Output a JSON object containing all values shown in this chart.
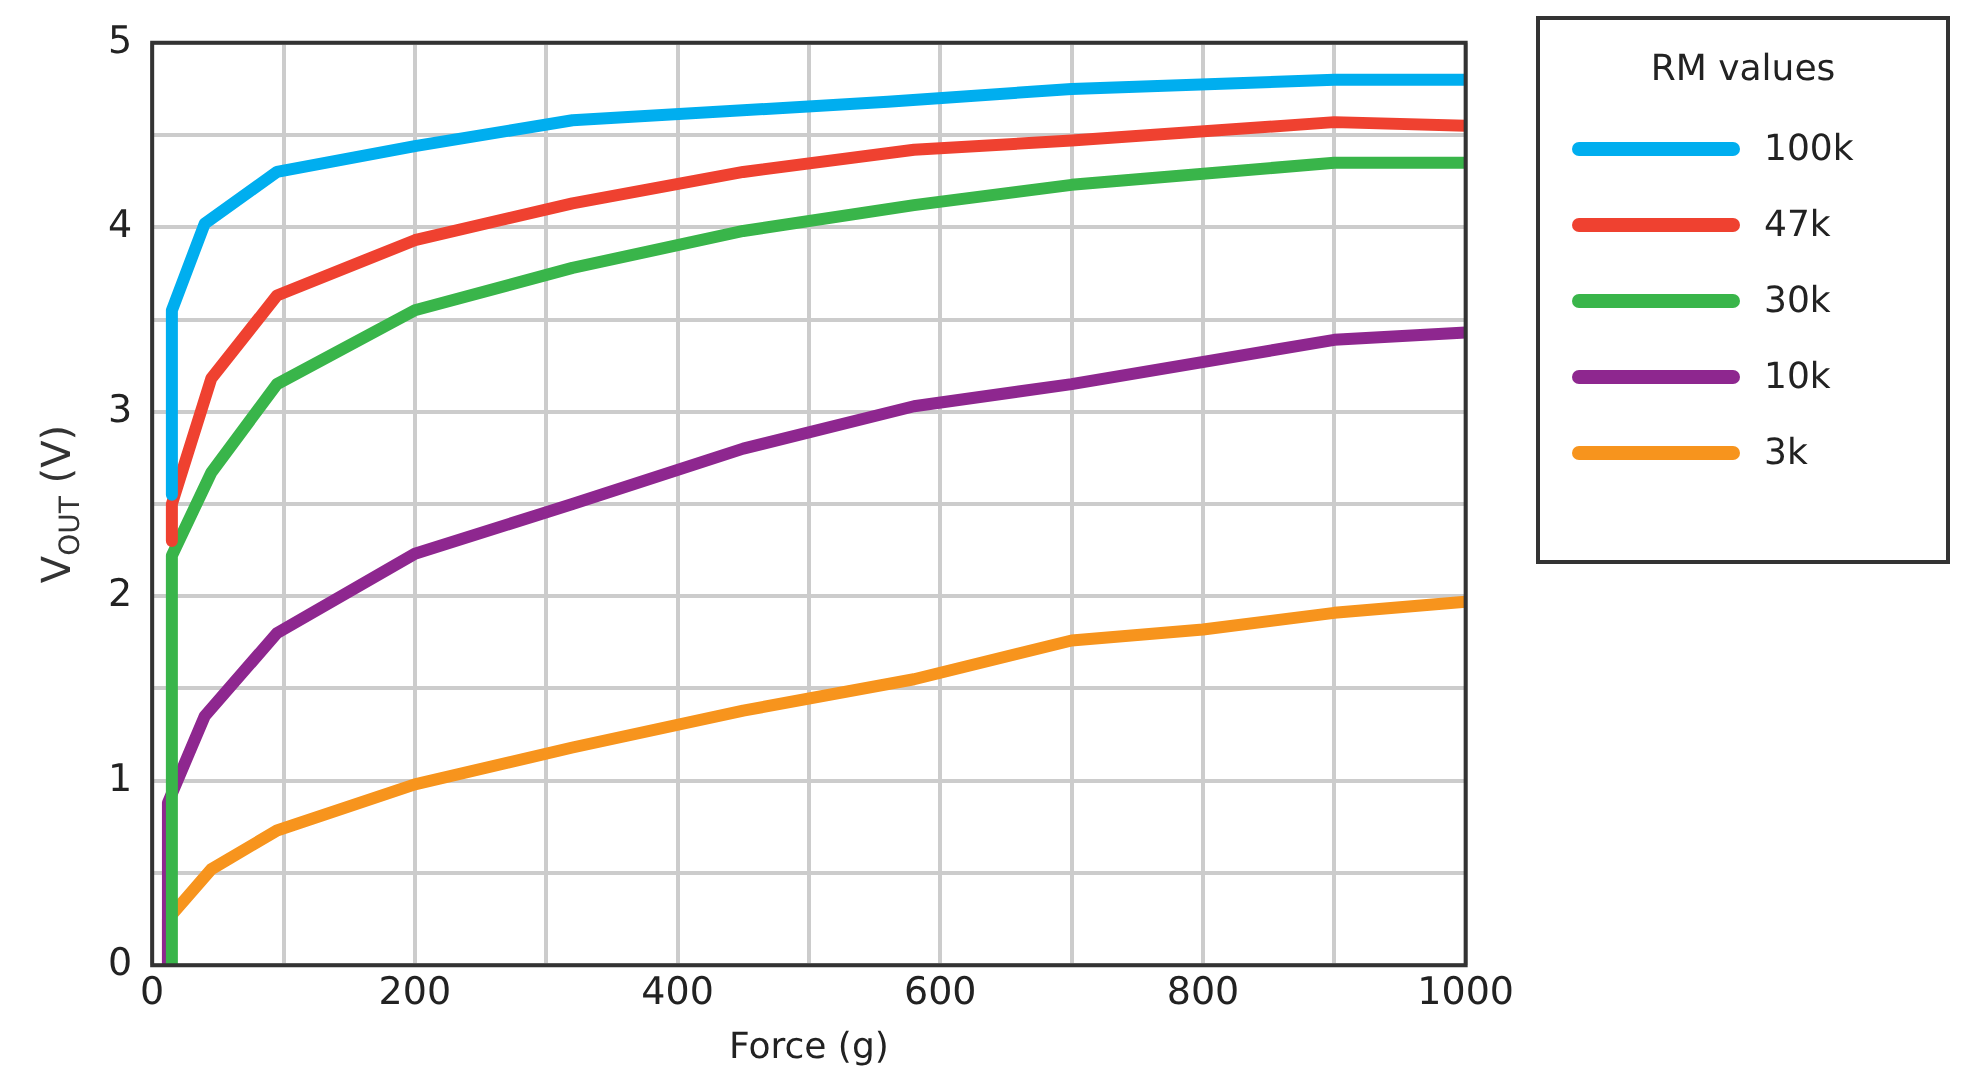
{
  "chart_data": {
    "type": "line",
    "xlabel": "Force (g)",
    "ylabel": "V$_{OUT}$ (V)",
    "legend_title": "RM values",
    "legend": "right",
    "grid": true,
    "marker": "none",
    "line_style": "solid",
    "xlim": [
      0,
      1000
    ],
    "ylim": [
      0,
      5
    ],
    "xticks": [
      0,
      {
        "value": 100,
        "label": null
      },
      200,
      {
        "value": 300,
        "label": null
      },
      400,
      {
        "value": 500,
        "label": null
      },
      600,
      {
        "value": 700,
        "label": null
      },
      800,
      {
        "value": 900,
        "label": null
      },
      1000
    ],
    "yticks": [
      0,
      {
        "value": 0.5,
        "label": null
      },
      1,
      {
        "value": 1.5,
        "label": null
      },
      2,
      {
        "value": 2.5,
        "label": null
      },
      3,
      {
        "value": 3.5,
        "label": null
      },
      4,
      {
        "value": 4.5,
        "label": null
      },
      5
    ],
    "series": [
      {
        "name": "100k",
        "color": "#00aeef",
        "x": [
          15,
          15,
          40,
          95,
          200,
          320,
          560,
          700,
          900,
          1000
        ],
        "values": [
          2.55,
          3.55,
          4.02,
          4.3,
          4.44,
          4.58,
          4.68,
          4.75,
          4.8,
          4.8
        ]
      },
      {
        "name": "47k",
        "color": "#ef4130",
        "x": [
          15,
          15,
          45,
          95,
          200,
          320,
          450,
          580,
          700,
          900,
          1000
        ],
        "values": [
          2.3,
          2.5,
          3.18,
          3.63,
          3.93,
          4.13,
          4.3,
          4.42,
          4.47,
          4.57,
          4.55
        ]
      },
      {
        "name": "30k",
        "color": "#39b54a",
        "x": [
          15,
          15,
          45,
          95,
          200,
          320,
          450,
          580,
          700,
          900,
          1000
        ],
        "values": [
          0,
          2.22,
          2.67,
          3.15,
          3.55,
          3.78,
          3.98,
          4.12,
          4.23,
          4.35,
          4.35
        ]
      },
      {
        "name": "10k",
        "color": "#8e278f",
        "x": [
          12,
          12,
          40,
          95,
          200,
          320,
          450,
          580,
          700,
          900,
          1000
        ],
        "values": [
          0,
          0.88,
          1.35,
          1.8,
          2.23,
          2.5,
          2.8,
          3.03,
          3.15,
          3.39,
          3.43
        ]
      },
      {
        "name": "3k",
        "color": "#f7941d",
        "x": [
          12,
          12,
          45,
          95,
          200,
          320,
          450,
          580,
          700,
          800,
          900,
          1000
        ],
        "values": [
          0,
          0.25,
          0.52,
          0.73,
          0.98,
          1.18,
          1.38,
          1.55,
          1.76,
          1.82,
          1.91,
          1.97
        ]
      }
    ]
  }
}
